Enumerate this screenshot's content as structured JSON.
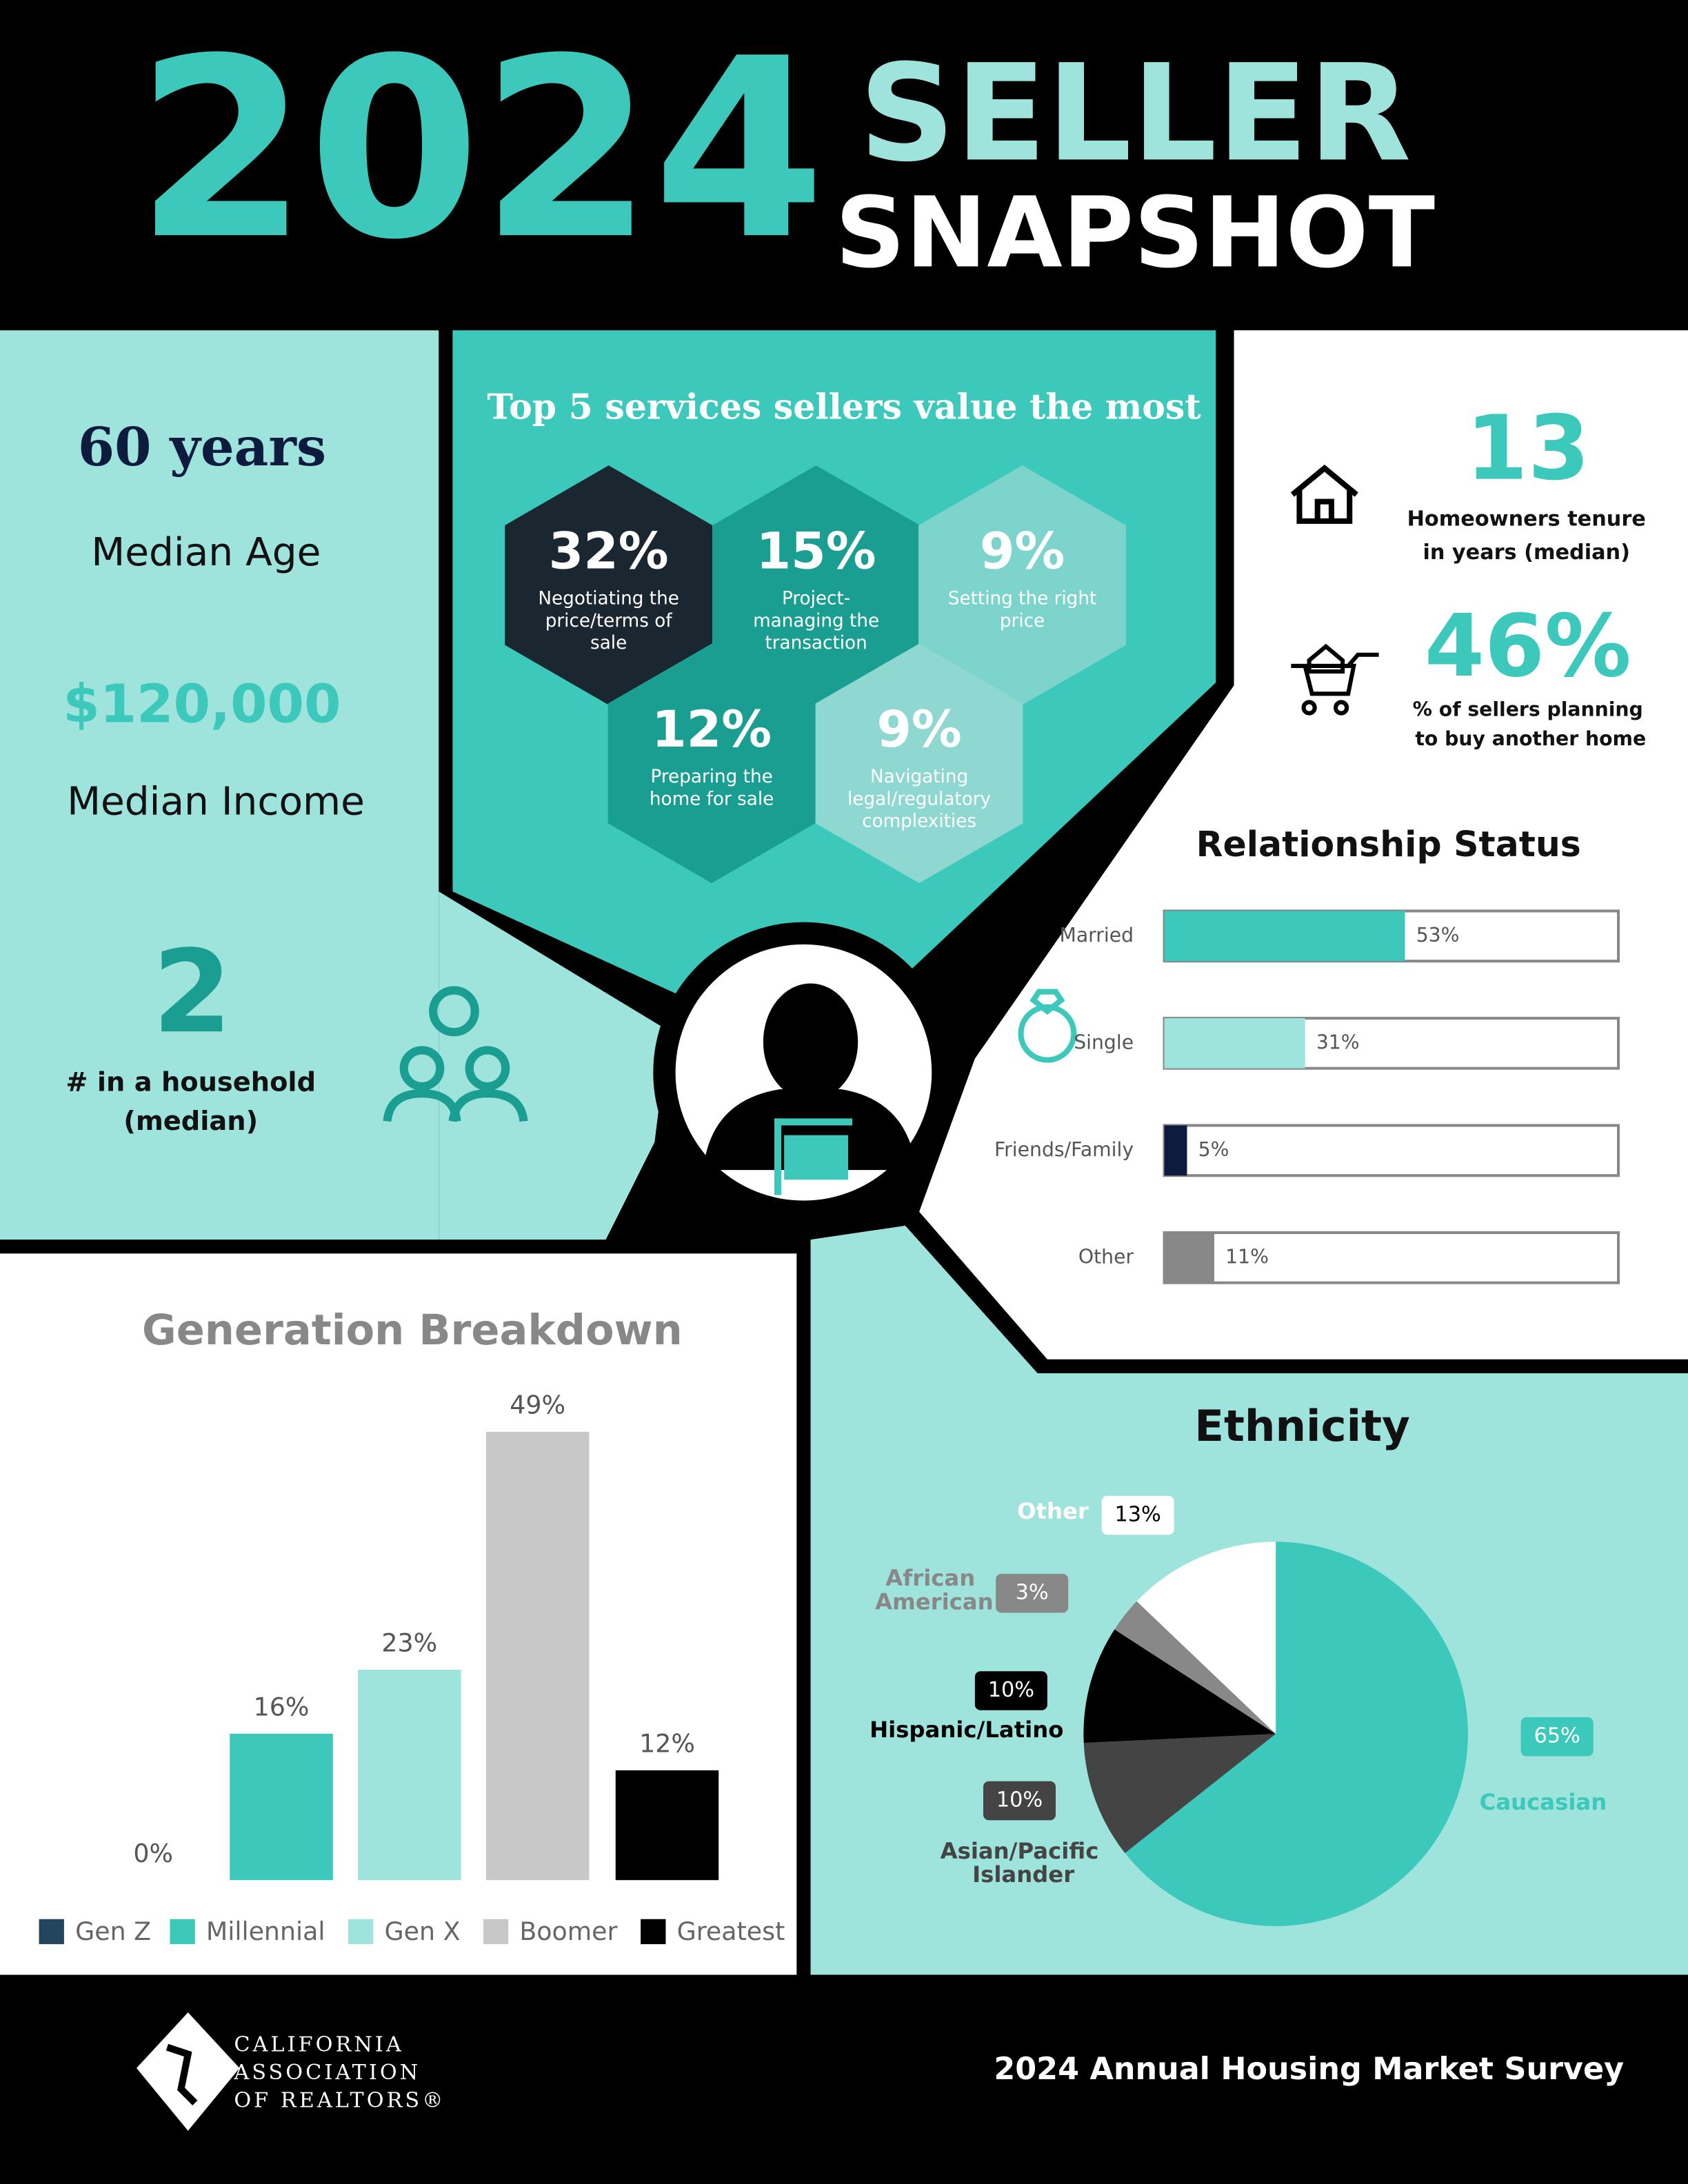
{
  "header": {
    "year": "2024",
    "title_line1": "SELLER",
    "title_line2": "SNAPSHOT"
  },
  "stats": {
    "median_age_value": "60 years",
    "median_age_label": "Median Age",
    "median_income_value": "$120,000",
    "median_income_label": "Median Income",
    "household_value": "2",
    "household_label": [
      "# in a household",
      "(median)"
    ],
    "tenure_value": "13",
    "tenure_label": [
      "Homeowners tenure",
      "in years (median)"
    ],
    "buy_value": "46%",
    "buy_label": [
      "% of sellers planning",
      "to buy another home"
    ]
  },
  "services": {
    "title": "Top 5 services sellers value the most",
    "items": [
      {
        "value": "32%",
        "label": [
          "Negotiating the",
          "price/terms of",
          "sale"
        ]
      },
      {
        "value": "15%",
        "label": [
          "Project-",
          "managing the",
          "transaction"
        ]
      },
      {
        "value": "9%",
        "label": [
          "Setting the right",
          "price"
        ]
      },
      {
        "value": "12%",
        "label": [
          "Preparing the",
          "home for sale"
        ]
      },
      {
        "value": "9%",
        "label": [
          "Navigating",
          "legal/regulatory",
          "complexities"
        ]
      }
    ]
  },
  "chart_data": [
    {
      "type": "hbar",
      "title": "Relationship Status",
      "categories": [
        "Married",
        "Single",
        "Friends/Family",
        "Other"
      ],
      "values": [
        53,
        31,
        5,
        11
      ],
      "value_labels": [
        "53%",
        "31%",
        "5%",
        "11%"
      ],
      "colors": [
        "#3cc8bb",
        "#9fe3dd",
        "#0d1b3e",
        "#888888"
      ],
      "xlim": [
        0,
        100
      ]
    },
    {
      "type": "bar",
      "title": "Generation Breakdown",
      "categories": [
        "Gen Z",
        "Millennial",
        "Gen X",
        "Boomer",
        "Greatest"
      ],
      "values": [
        0,
        16,
        23,
        49,
        12
      ],
      "value_labels": [
        "0%",
        "16%",
        "23%",
        "49%",
        "12%"
      ],
      "colors": [
        "#24455e",
        "#3cc8bb",
        "#9fe3dd",
        "#c8c8c8",
        "#000000"
      ]
    },
    {
      "type": "pie",
      "title": "Ethnicity",
      "categories": [
        "Caucasian",
        "Asian/Pacific Islander",
        "Hispanic/Latino",
        "African American",
        "Other"
      ],
      "values": [
        65,
        10,
        10,
        3,
        13
      ],
      "value_labels": [
        "65%",
        "10%",
        "10%",
        "3%",
        "13%"
      ],
      "colors": [
        "#3cc8bb",
        "#444444",
        "#000000",
        "#888888",
        "#ffffff"
      ]
    }
  ],
  "footer": {
    "org": [
      "CALIFORNIA",
      "ASSOCIATION",
      "OF REALTORS®"
    ],
    "survey": "2024 Annual Housing Market Survey"
  }
}
